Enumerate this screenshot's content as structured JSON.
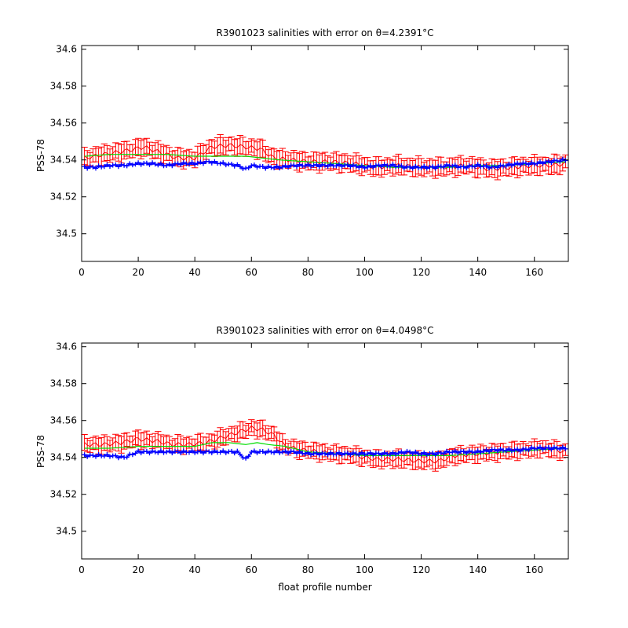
{
  "chart_data": [
    {
      "type": "errorbar",
      "title": "R3901023 salinities with error on θ=4.2391°C",
      "xlabel": "",
      "ylabel": "PSS-78",
      "xlim": [
        0,
        172
      ],
      "ylim": [
        34.485,
        34.602
      ],
      "xticks": [
        "0",
        "20",
        "40",
        "60",
        "80",
        "100",
        "120",
        "140",
        "160"
      ],
      "yticks": [
        "34.5",
        "34.52",
        "34.54",
        "34.56",
        "34.58",
        "34.6"
      ],
      "grid": false,
      "colors": {
        "error": "#ff0000",
        "mapped": "#00dd00",
        "float": "#0000ff"
      },
      "series": [
        {
          "x": [
            1,
            8,
            16,
            22,
            28,
            34,
            40,
            46,
            52,
            58,
            63,
            68,
            74,
            80,
            88,
            96,
            104,
            112,
            120,
            128,
            136,
            144,
            152,
            160,
            166,
            171
          ],
          "values": [
            34.541,
            34.543,
            34.545,
            34.547,
            34.544,
            34.541,
            34.541,
            34.547,
            34.548,
            34.547,
            34.546,
            34.541,
            34.54,
            34.539,
            34.539,
            34.538,
            34.536,
            34.537,
            34.536,
            34.536,
            34.537,
            34.535,
            34.536,
            34.537,
            34.537,
            34.538
          ],
          "error": 0.005
        },
        {
          "x": [
            1,
            10,
            20,
            30,
            40,
            46,
            52,
            58,
            64,
            70,
            80,
            90,
            100,
            110,
            120,
            130,
            140,
            150,
            160,
            171
          ],
          "values": [
            34.542,
            34.543,
            34.543,
            34.543,
            34.542,
            34.542,
            34.542,
            34.542,
            34.541,
            34.54,
            34.539,
            34.538,
            34.537,
            34.536,
            34.536,
            34.536,
            34.537,
            34.537,
            34.538,
            34.539
          ]
        },
        {
          "x": [
            1,
            5,
            10,
            15,
            20,
            25,
            30,
            35,
            40,
            45,
            50,
            55,
            58,
            60,
            65,
            70,
            75,
            80,
            85,
            90,
            95,
            100,
            105,
            110,
            115,
            120,
            125,
            130,
            135,
            140,
            145,
            150,
            155,
            160,
            165,
            171
          ],
          "values": [
            34.536,
            34.536,
            34.537,
            34.537,
            34.538,
            34.538,
            34.537,
            34.538,
            34.538,
            34.539,
            34.538,
            34.537,
            34.535,
            34.537,
            34.536,
            34.536,
            34.537,
            34.537,
            34.537,
            34.537,
            34.537,
            34.536,
            34.537,
            34.537,
            34.536,
            34.536,
            34.536,
            34.537,
            34.536,
            34.537,
            34.536,
            34.537,
            34.538,
            34.538,
            34.539,
            34.54
          ]
        }
      ]
    },
    {
      "type": "errorbar",
      "title": "R3901023 salinities with error on θ=4.0498°C",
      "xlabel": "float profile number",
      "ylabel": "PSS-78",
      "xlim": [
        0,
        172
      ],
      "ylim": [
        34.485,
        34.602
      ],
      "xticks": [
        "0",
        "20",
        "40",
        "60",
        "80",
        "100",
        "120",
        "140",
        "160"
      ],
      "yticks": [
        "34.5",
        "34.52",
        "34.54",
        "34.56",
        "34.58",
        "34.6"
      ],
      "grid": false,
      "colors": {
        "error": "#ff0000",
        "mapped": "#00dd00",
        "float": "#0000ff"
      },
      "series": [
        {
          "x": [
            1,
            8,
            14,
            20,
            26,
            32,
            38,
            44,
            50,
            56,
            60,
            64,
            68,
            72,
            78,
            84,
            90,
            96,
            104,
            112,
            120,
            126,
            132,
            140,
            148,
            156,
            164,
            171
          ],
          "values": [
            34.547,
            34.547,
            34.548,
            34.55,
            34.549,
            34.547,
            34.547,
            34.548,
            34.551,
            34.554,
            34.556,
            34.555,
            34.552,
            34.546,
            34.544,
            34.543,
            34.542,
            34.541,
            34.539,
            34.539,
            34.538,
            34.538,
            34.541,
            34.542,
            34.543,
            34.544,
            34.545,
            34.543
          ],
          "error": 0.0045
        },
        {
          "x": [
            1,
            10,
            20,
            30,
            40,
            46,
            52,
            58,
            62,
            66,
            72,
            80,
            90,
            100,
            110,
            120,
            130,
            140,
            150,
            160,
            171
          ],
          "values": [
            34.545,
            34.545,
            34.546,
            34.546,
            34.546,
            34.548,
            34.548,
            34.547,
            34.548,
            34.547,
            34.546,
            34.543,
            34.542,
            34.541,
            34.541,
            34.541,
            34.541,
            34.542,
            34.543,
            34.544,
            34.545
          ]
        },
        {
          "x": [
            1,
            5,
            10,
            15,
            20,
            25,
            30,
            35,
            40,
            45,
            50,
            55,
            58,
            60,
            65,
            70,
            75,
            80,
            85,
            90,
            95,
            100,
            105,
            110,
            115,
            120,
            125,
            130,
            135,
            140,
            145,
            150,
            155,
            160,
            165,
            171
          ],
          "values": [
            34.541,
            34.541,
            34.541,
            34.54,
            34.543,
            34.543,
            34.543,
            34.543,
            34.543,
            34.543,
            34.543,
            34.543,
            34.539,
            34.543,
            34.543,
            34.543,
            34.543,
            34.542,
            34.542,
            34.542,
            34.542,
            34.542,
            34.542,
            34.542,
            34.543,
            34.542,
            34.542,
            34.543,
            34.543,
            34.543,
            34.544,
            34.544,
            34.544,
            34.545,
            34.545,
            34.545
          ]
        }
      ]
    }
  ]
}
